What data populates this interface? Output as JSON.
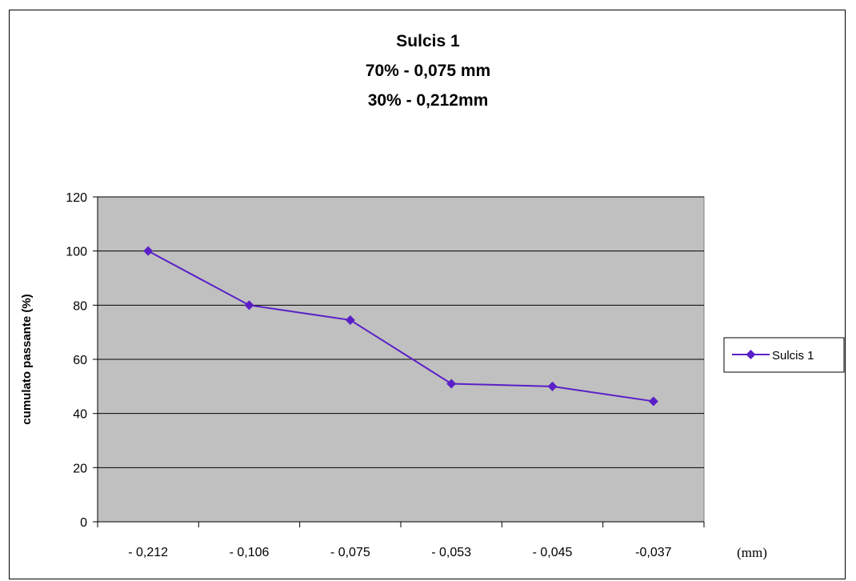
{
  "chart_data": {
    "type": "line",
    "title": "Sulcis 1",
    "subtitle_lines": [
      "70% - 0,075 mm",
      "30% - 0,212mm"
    ],
    "ylabel": "cumulato passante (%)",
    "xlabel": "(mm)",
    "categories": [
      "- 0,212",
      "- 0,106",
      "- 0,075",
      "- 0,053",
      "- 0,045",
      "-0,037"
    ],
    "series": [
      {
        "name": "Sulcis 1",
        "values": [
          100,
          80,
          74.5,
          51,
          50,
          44.5
        ]
      }
    ],
    "ylim": [
      0,
      120
    ],
    "yticks": [
      0,
      20,
      40,
      60,
      80,
      100,
      120
    ],
    "grid": true,
    "legend_position": "right",
    "colors": {
      "series": "#5a1fc7",
      "plot_bg": "#c0c0c0",
      "grid": "#000000"
    }
  }
}
